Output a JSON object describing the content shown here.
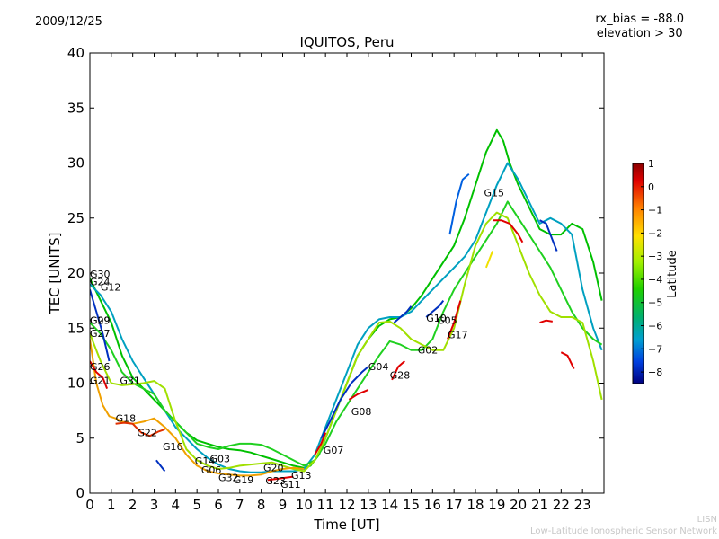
{
  "header": {
    "date": "2009/12/25",
    "rx_bias": "rx_bias = -88.0",
    "elevation": "elevation > 30"
  },
  "footer": {
    "line1": "LISN",
    "line2": "Low-Latitude Ionospheric Sensor Network"
  },
  "chart_data": {
    "type": "line",
    "title": "IQUITOS, Peru",
    "xlabel": "Time [UT]",
    "ylabel": "TEC [UNITS]",
    "xlim": [
      0,
      24
    ],
    "ylim": [
      0,
      40
    ],
    "xticks": [
      "0",
      "1",
      "2",
      "3",
      "4",
      "5",
      "6",
      "7",
      "8",
      "9",
      "10",
      "11",
      "12",
      "13",
      "14",
      "15",
      "16",
      "17",
      "18",
      "19",
      "20",
      "21",
      "22",
      "23"
    ],
    "yticks": [
      "0",
      "5",
      "10",
      "15",
      "20",
      "25",
      "30",
      "35",
      "40"
    ],
    "grid": false,
    "colorbar": {
      "label": "Latitude",
      "range": [
        -8.5,
        1
      ],
      "ticks": [
        "1",
        "0",
        "−1",
        "−2",
        "−3",
        "−4",
        "−5",
        "−6",
        "−7",
        "−8"
      ],
      "tick_values": [
        1,
        0,
        -1,
        -2,
        -3,
        -4,
        -5,
        -6,
        -7,
        -8
      ]
    },
    "satellite_labels": [
      {
        "text": "G30",
        "x": 0.0,
        "y": 19.6
      },
      {
        "text": "G24",
        "x": 0.0,
        "y": 18.9
      },
      {
        "text": "G12",
        "x": 0.5,
        "y": 18.4
      },
      {
        "text": "G29",
        "x": 0.0,
        "y": 15.4
      },
      {
        "text": "G09",
        "x": 0.0,
        "y": 15.4
      },
      {
        "text": "G27",
        "x": 0.0,
        "y": 14.2
      },
      {
        "text": "G26",
        "x": 0.0,
        "y": 11.2
      },
      {
        "text": "G21",
        "x": 0.0,
        "y": 9.9
      },
      {
        "text": "G31",
        "x": 1.4,
        "y": 9.9
      },
      {
        "text": "G18",
        "x": 1.2,
        "y": 6.5
      },
      {
        "text": "G22",
        "x": 2.2,
        "y": 5.2
      },
      {
        "text": "G16",
        "x": 3.4,
        "y": 3.9
      },
      {
        "text": "G14",
        "x": 4.9,
        "y": 2.6
      },
      {
        "text": "G03",
        "x": 5.6,
        "y": 2.8
      },
      {
        "text": "G06",
        "x": 5.2,
        "y": 1.8
      },
      {
        "text": "G32",
        "x": 6.0,
        "y": 1.1
      },
      {
        "text": "G19",
        "x": 6.7,
        "y": 0.9
      },
      {
        "text": "G20",
        "x": 8.1,
        "y": 2.0
      },
      {
        "text": "G23",
        "x": 8.2,
        "y": 0.8
      },
      {
        "text": "G11",
        "x": 8.9,
        "y": 0.5
      },
      {
        "text": "G13",
        "x": 9.4,
        "y": 1.3
      },
      {
        "text": "G07",
        "x": 10.9,
        "y": 3.6
      },
      {
        "text": "G08",
        "x": 12.2,
        "y": 7.1
      },
      {
        "text": "G04",
        "x": 13.0,
        "y": 11.2
      },
      {
        "text": "G28",
        "x": 14.0,
        "y": 10.4
      },
      {
        "text": "G02",
        "x": 15.3,
        "y": 12.7
      },
      {
        "text": "G10",
        "x": 15.7,
        "y": 15.6
      },
      {
        "text": "G05",
        "x": 16.2,
        "y": 15.4
      },
      {
        "text": "G17",
        "x": 16.7,
        "y": 14.1
      },
      {
        "text": "G15",
        "x": 18.4,
        "y": 27.0
      }
    ],
    "series": [
      {
        "color": "#00c000",
        "x": [
          0,
          0.5,
          1,
          1.5,
          2,
          2.5,
          3,
          3.5,
          4,
          4.5,
          5,
          5.5,
          6,
          6.5,
          7,
          7.5,
          8,
          8.5,
          9,
          9.5,
          10,
          10.3,
          10.7,
          11,
          11.5,
          12,
          12.5,
          13,
          13.5,
          14,
          14.5,
          15,
          15.5,
          16,
          16.5,
          17,
          17.5,
          18,
          18.5,
          19,
          19.3,
          19.6,
          20,
          20.5,
          21,
          21.5,
          22,
          22.5,
          23,
          23.5,
          23.9
        ],
        "y": [
          19.5,
          17.5,
          15.5,
          12.5,
          10.5,
          9.5,
          8.5,
          7.5,
          6.5,
          5.5,
          4.8,
          4.5,
          4.2,
          4.0,
          3.9,
          3.7,
          3.4,
          3.1,
          2.8,
          2.5,
          2.3,
          2.5,
          3.5,
          5.0,
          7.5,
          10.0,
          12.5,
          14.0,
          15.2,
          15.8,
          16.0,
          16.8,
          18.0,
          19.5,
          21.0,
          22.5,
          25.0,
          28.0,
          31.0,
          33.0,
          32.0,
          30.0,
          28.0,
          26.0,
          24.0,
          23.5,
          23.5,
          24.5,
          24.0,
          21.0,
          17.5
        ]
      },
      {
        "color": "#00a0c0",
        "x": [
          0,
          0.5,
          1,
          1.5,
          2,
          2.5,
          3,
          3.5,
          4,
          4.5,
          5,
          5.5,
          6,
          6.5,
          7,
          7.5,
          8,
          8.5,
          9,
          9.5,
          10,
          10.5,
          11,
          11.5,
          12,
          12.5,
          13,
          13.5,
          14,
          14.5,
          15,
          15.5,
          16,
          16.5,
          17,
          17.5,
          18,
          18.5,
          19,
          19.5,
          20,
          20.5,
          21,
          21.5,
          22,
          22.5,
          23,
          23.5,
          23.9
        ],
        "y": [
          19.0,
          18.0,
          16.5,
          14.0,
          12.0,
          10.5,
          9.0,
          7.5,
          6.0,
          5.0,
          4.0,
          3.2,
          2.6,
          2.2,
          2.0,
          1.9,
          1.9,
          2.0,
          2.0,
          2.0,
          2.2,
          3.5,
          6.0,
          8.5,
          11.0,
          13.5,
          15.0,
          15.8,
          16.0,
          16.0,
          16.5,
          17.5,
          18.5,
          19.5,
          20.5,
          21.5,
          23.0,
          25.5,
          28.0,
          30.0,
          28.5,
          26.5,
          24.5,
          25.0,
          24.5,
          23.5,
          18.5,
          15.0,
          13.0
        ]
      },
      {
        "color": "#20d020",
        "x": [
          0,
          0.5,
          1,
          1.5,
          2,
          2.5,
          3,
          3.5,
          4,
          4.5,
          5,
          5.5,
          6,
          6.5,
          7,
          7.5,
          8,
          8.5,
          9,
          9.5,
          10,
          10.5,
          11,
          11.5,
          12,
          12.5,
          13,
          13.5,
          14,
          14.5,
          15,
          15.5,
          16,
          16.5,
          17,
          17.5,
          18,
          18.5,
          19,
          19.5,
          20,
          20.5,
          21,
          21.5,
          22,
          22.5,
          23,
          23.5,
          23.9
        ],
        "y": [
          15.5,
          14.5,
          13.0,
          11.0,
          10.0,
          9.5,
          9.0,
          7.5,
          6.5,
          5.5,
          4.5,
          4.2,
          4.0,
          4.3,
          4.5,
          4.5,
          4.4,
          4.0,
          3.5,
          3.0,
          2.5,
          3.0,
          4.5,
          6.5,
          8.0,
          9.5,
          11.0,
          12.5,
          13.8,
          13.5,
          13.0,
          13.0,
          14.0,
          16.5,
          18.5,
          20.0,
          21.5,
          23.0,
          24.5,
          26.5,
          25.0,
          23.5,
          22.0,
          20.5,
          18.5,
          16.5,
          15.0,
          14.0,
          13.5
        ]
      },
      {
        "color": "#a0e000",
        "x": [
          0,
          0.5,
          1,
          1.5,
          2,
          2.5,
          3,
          3.5,
          4,
          4.5,
          5,
          5.5,
          6,
          6.5,
          7,
          7.5,
          8,
          8.5,
          9,
          9.5,
          10,
          10.5,
          11,
          11.5,
          12,
          12.5,
          13,
          13.5,
          14,
          14.5,
          15,
          15.5,
          16,
          16.5,
          17,
          17.5,
          18,
          18.5,
          19,
          19.5,
          20,
          20.5,
          21,
          21.5,
          22,
          22.5,
          23,
          23.5,
          23.9
        ],
        "y": [
          14.5,
          12.0,
          10.0,
          9.8,
          9.9,
          10.0,
          10.2,
          9.5,
          6.5,
          4.0,
          3.0,
          2.5,
          2.2,
          2.3,
          2.5,
          2.6,
          2.7,
          2.8,
          2.5,
          2.2,
          2.0,
          3.0,
          5.0,
          7.5,
          10.0,
          12.5,
          14.0,
          15.5,
          15.6,
          15.0,
          14.0,
          13.5,
          13.0,
          13.0,
          15.0,
          19.0,
          22.5,
          24.5,
          25.5,
          25.0,
          22.5,
          20.0,
          18.0,
          16.5,
          16.0,
          16.0,
          15.5,
          12.0,
          8.5
        ]
      },
      {
        "color": "#f0a000",
        "x": [
          0,
          0.3,
          0.6,
          0.9,
          1.2,
          1.5,
          2,
          2.5,
          3,
          3.5,
          4,
          4.5,
          5,
          5.5,
          6,
          6.5,
          7,
          7.5,
          8,
          8.5,
          9,
          9.5,
          10
        ],
        "y": [
          14.0,
          10.0,
          8.0,
          7.0,
          6.8,
          6.5,
          6.3,
          6.5,
          6.8,
          6.0,
          5.0,
          3.5,
          2.5,
          2.0,
          1.8,
          1.7,
          1.6,
          1.6,
          1.7,
          2.0,
          2.2,
          2.3,
          2.2
        ]
      },
      {
        "color": "#e00000",
        "x": [
          0,
          0.3,
          0.6,
          0.8
        ],
        "y": [
          12.0,
          11.0,
          10.5,
          9.5
        ]
      },
      {
        "color": "#e03000",
        "x": [
          1.2,
          1.6,
          2.0,
          2.4,
          2.8,
          3.2,
          3.5
        ],
        "y": [
          6.3,
          6.4,
          6.3,
          5.5,
          5.2,
          5.6,
          5.8
        ]
      },
      {
        "color": "#0030c0",
        "x": [
          0,
          0.3,
          0.6,
          0.9
        ],
        "y": [
          18.5,
          16.5,
          14.5,
          12.0
        ]
      },
      {
        "color": "#0030c0",
        "x": [
          3.1,
          3.3,
          3.5
        ],
        "y": [
          3.0,
          2.5,
          2.0
        ]
      },
      {
        "color": "#0030c0",
        "x": [
          10.8,
          11.2,
          11.7,
          12.2,
          12.7,
          13.0
        ],
        "y": [
          5.0,
          6.5,
          8.5,
          10.0,
          11.0,
          11.5
        ]
      },
      {
        "color": "#0030c0",
        "x": [
          14.2,
          14.5,
          14.8,
          15.0
        ],
        "y": [
          15.5,
          16.0,
          16.5,
          17.0
        ]
      },
      {
        "color": "#0030c0",
        "x": [
          15.7,
          16.0,
          16.3,
          16.5
        ],
        "y": [
          16.0,
          16.5,
          17.0,
          17.5
        ]
      },
      {
        "color": "#0060e0",
        "x": [
          16.8,
          17.1,
          17.4,
          17.7
        ],
        "y": [
          23.5,
          26.5,
          28.5,
          29.0
        ]
      },
      {
        "color": "#0030c0",
        "x": [
          21.0,
          21.3,
          21.6,
          21.8
        ],
        "y": [
          24.8,
          24.5,
          23.0,
          22.0
        ]
      },
      {
        "color": "#e00000",
        "x": [
          12.1,
          12.5,
          13.0
        ],
        "y": [
          8.5,
          9.0,
          9.4
        ]
      },
      {
        "color": "#e00000",
        "x": [
          14.1,
          14.4,
          14.7
        ],
        "y": [
          10.3,
          11.5,
          12.0
        ]
      },
      {
        "color": "#e00000",
        "x": [
          16.7,
          17.0,
          17.3
        ],
        "y": [
          14.0,
          15.5,
          17.5
        ]
      },
      {
        "color": "#e00000",
        "x": [
          18.8,
          19.2,
          19.6,
          20.0,
          20.2
        ],
        "y": [
          24.8,
          24.8,
          24.5,
          23.5,
          22.8
        ]
      },
      {
        "color": "#e00000",
        "x": [
          21.0,
          21.3,
          21.6
        ],
        "y": [
          15.5,
          15.7,
          15.6
        ]
      },
      {
        "color": "#e00000",
        "x": [
          22.0,
          22.3,
          22.6
        ],
        "y": [
          12.8,
          12.5,
          11.3
        ]
      },
      {
        "color": "#e00000",
        "x": [
          8.3,
          8.7,
          9.1,
          9.5
        ],
        "y": [
          1.2,
          1.3,
          1.4,
          1.5
        ]
      },
      {
        "color": "#e00000",
        "x": [
          10.5,
          10.8,
          11.0
        ],
        "y": [
          3.5,
          4.5,
          5.5
        ]
      },
      {
        "color": "#f0e000",
        "x": [
          18.5,
          18.7,
          18.8
        ],
        "y": [
          20.5,
          21.5,
          22.0
        ]
      }
    ]
  }
}
